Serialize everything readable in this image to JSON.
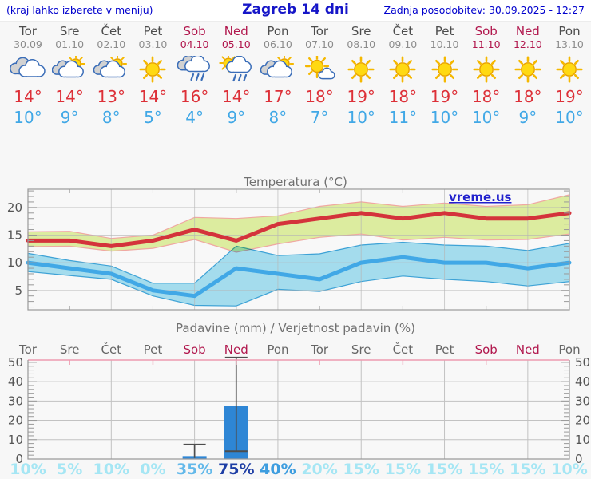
{
  "header": {
    "hint": "(kraj lahko izberete v meniju)",
    "title": "Zagreb 14 dni",
    "last_update": "Zadnja posodobitev: 30.09.2025 - 12:27"
  },
  "colors": {
    "header_blue": "#0000cd",
    "weekend": "#b1174d",
    "tmax_red": "#dd3038",
    "tmin_blue": "#41a8e6",
    "max_line": "#d4333b",
    "max_band": "#dcec9f",
    "max_band_edge": "#f0a8a2",
    "min_line": "#41a8e6",
    "min_band": "#a9e3f4",
    "min_band_edge": "#3fa7dc",
    "bar_blue": "#2e86d5",
    "precip_top_axis": "#ee9bb0",
    "prob_low": "#a5e6f4",
    "prob_mid": "#64b9ea",
    "prob_high": "#3d9ddf",
    "prob_very_high": "#1e3ea5"
  },
  "days": [
    {
      "name": "Tor",
      "date": "30.09",
      "weekend": false,
      "icon": "cloudy",
      "tmax": "14°",
      "tmin": "10°"
    },
    {
      "name": "Sre",
      "date": "01.10",
      "weekend": false,
      "icon": "partly",
      "tmax": "14°",
      "tmin": "9°"
    },
    {
      "name": "Čet",
      "date": "02.10",
      "weekend": false,
      "icon": "partly",
      "tmax": "13°",
      "tmin": "8°"
    },
    {
      "name": "Pet",
      "date": "03.10",
      "weekend": false,
      "icon": "sunny",
      "tmax": "14°",
      "tmin": "5°"
    },
    {
      "name": "Sob",
      "date": "04.10",
      "weekend": true,
      "icon": "rain",
      "tmax": "16°",
      "tmin": "4°"
    },
    {
      "name": "Ned",
      "date": "05.10",
      "weekend": true,
      "icon": "sun-rain",
      "tmax": "14°",
      "tmin": "9°"
    },
    {
      "name": "Pon",
      "date": "06.10",
      "weekend": false,
      "icon": "partly",
      "tmax": "17°",
      "tmin": "8°"
    },
    {
      "name": "Tor",
      "date": "07.10",
      "weekend": false,
      "icon": "sun-cloud",
      "tmax": "18°",
      "tmin": "7°"
    },
    {
      "name": "Sre",
      "date": "08.10",
      "weekend": false,
      "icon": "sunny",
      "tmax": "19°",
      "tmin": "10°"
    },
    {
      "name": "Čet",
      "date": "09.10",
      "weekend": false,
      "icon": "sunny",
      "tmax": "18°",
      "tmin": "11°"
    },
    {
      "name": "Pet",
      "date": "10.10",
      "weekend": false,
      "icon": "sunny",
      "tmax": "19°",
      "tmin": "10°"
    },
    {
      "name": "Sob",
      "date": "11.10",
      "weekend": true,
      "icon": "sunny",
      "tmax": "18°",
      "tmin": "10°"
    },
    {
      "name": "Ned",
      "date": "12.10",
      "weekend": true,
      "icon": "sunny",
      "tmax": "18°",
      "tmin": "9°"
    },
    {
      "name": "Pon",
      "date": "13.10",
      "weekend": false,
      "icon": "sunny",
      "tmax": "19°",
      "tmin": "10°"
    }
  ],
  "chart_data": [
    {
      "type": "line",
      "title": "Temperatura (°C)",
      "categories": [
        "Tor",
        "Sre",
        "Čet",
        "Pet",
        "Sob",
        "Ned",
        "Pon",
        "Tor",
        "Sre",
        "Čet",
        "Pet",
        "Sob",
        "Ned",
        "Pon"
      ],
      "ylim": [
        1.5,
        23.3
      ],
      "yticks": [
        5,
        10,
        15,
        20
      ],
      "grid": true,
      "watermark": "vreme.us",
      "series": [
        {
          "name": "max-temp",
          "values": [
            14,
            14,
            13,
            14,
            16,
            14,
            17,
            18,
            19,
            18,
            19,
            18,
            18,
            19
          ],
          "band_top": [
            15.6,
            15.7,
            14.4,
            15,
            18.2,
            18,
            18.5,
            20.2,
            21,
            20.2,
            20.8,
            20.2,
            20.5,
            22.3
          ],
          "band_bottom": [
            12.9,
            13,
            12.1,
            12.6,
            14.2,
            11.9,
            13.4,
            14.6,
            15.2,
            14.1,
            14.6,
            14.1,
            14.2,
            15.2
          ]
        },
        {
          "name": "min-temp",
          "values": [
            10,
            9,
            8,
            5,
            4,
            9,
            8,
            7,
            10,
            11,
            10,
            10,
            9,
            10
          ],
          "band_top": [
            11.7,
            10.4,
            9.4,
            6.3,
            6.3,
            13,
            11.3,
            11.6,
            13.2,
            13.7,
            13.2,
            13,
            12.2,
            13.5
          ],
          "band_bottom": [
            8.4,
            7.7,
            7,
            4,
            2.3,
            2.2,
            5.2,
            4.8,
            6.6,
            7.6,
            7,
            6.6,
            5.8,
            6.6
          ]
        }
      ]
    },
    {
      "type": "bar",
      "title": "Padavine (mm) / Verjetnost padavin (%)",
      "categories": [
        "Tor",
        "Sre",
        "Čet",
        "Pet",
        "Sob",
        "Ned",
        "Pon",
        "Tor",
        "Sre",
        "Čet",
        "Pet",
        "Sob",
        "Ned",
        "Pon"
      ],
      "ylim": [
        0,
        51.2
      ],
      "yticks": [
        0,
        10,
        20,
        30,
        40,
        50
      ],
      "grid": true,
      "values_mm": [
        0,
        0,
        0,
        0,
        1.5,
        27.5,
        0,
        0,
        0,
        0,
        0,
        0,
        0,
        0
      ],
      "whiskers": [
        {
          "day_index": 4,
          "low": 0.5,
          "high": 7.5,
          "low_cap": false
        },
        {
          "day_index": 5,
          "low": 4,
          "high": 52.5,
          "low_cap": true
        }
      ],
      "probabilities": [
        "10%",
        "5%",
        "10%",
        "0%",
        "35%",
        "75%",
        "40%",
        "20%",
        "15%",
        "15%",
        "15%",
        "15%",
        "15%",
        "10%"
      ]
    }
  ]
}
